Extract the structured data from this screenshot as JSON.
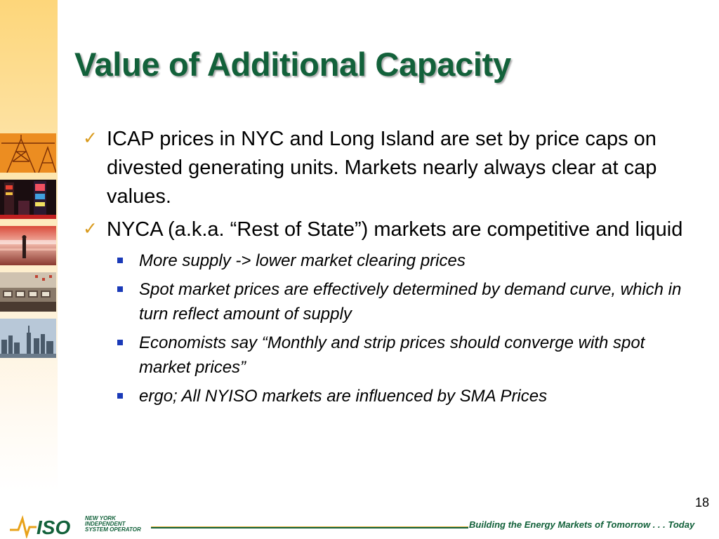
{
  "slide": {
    "title": "Value of Additional Capacity",
    "page_number": "18",
    "footer_tagline": "Building the Energy Markets of Tomorrow . . . Today"
  },
  "logo": {
    "mark": "ISO",
    "line1": "NEW YORK",
    "line2": "INDEPENDENT",
    "line3": "SYSTEM OPERATOR"
  },
  "bullets": [
    {
      "text": "ICAP prices in NYC and Long Island are set by price caps on divested generating units. Markets nearly always clear at cap values."
    },
    {
      "text": "NYCA (a.k.a. “Rest of State”) markets are competitive and liquid",
      "sub": [
        "More supply -> lower market clearing prices",
        "Spot market prices are effectively determined by demand curve, which in turn reflect amount of supply",
        "Economists say “Monthly and strip prices should converge with spot market prices”",
        "ergo; All NYISO markets are influenced by SMA Prices"
      ]
    }
  ],
  "icons": {
    "bullet_level1": "checkmark-icon",
    "bullet_level2": "square-bullet-icon"
  },
  "colors": {
    "title": "#12613a",
    "check": "#d99a1c",
    "sub_bullet": "#1a3ab8",
    "sidebar": "#fdd67a"
  },
  "sidebar_images": [
    "transmission-tower-photo",
    "times-square-photo",
    "motion-blur-person-photo",
    "trading-floor-photo",
    "city-skyline-photo"
  ]
}
